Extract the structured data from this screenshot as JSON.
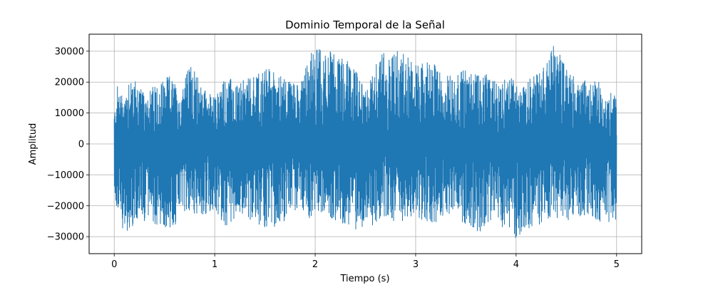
{
  "chart_data": {
    "type": "line",
    "title": "Dominio Temporal de la Señal",
    "xlabel": "Tiempo (s)",
    "ylabel": "Amplitud",
    "xlim": [
      -0.25,
      5.25
    ],
    "ylim": [
      -35500,
      35500
    ],
    "xticks": [
      0,
      1,
      2,
      3,
      4,
      5
    ],
    "xtick_labels": [
      "0",
      "1",
      "2",
      "3",
      "4",
      "5"
    ],
    "yticks": [
      -30000,
      -20000,
      -10000,
      0,
      10000,
      20000,
      30000
    ],
    "ytick_labels": [
      "−30000",
      "−20000",
      "−10000",
      "0",
      "10000",
      "20000",
      "30000"
    ],
    "grid": true,
    "line_color": "#1f77b4",
    "series": [
      {
        "name": "",
        "x_start": 0,
        "x_end": 5,
        "envelope": [
          {
            "x": 0.0,
            "max": 10000,
            "min": -17000
          },
          {
            "x": 0.03,
            "max": 19000,
            "min": -22000
          },
          {
            "x": 0.1,
            "max": 15000,
            "min": -29000
          },
          {
            "x": 0.16,
            "max": 24000,
            "min": -28000
          },
          {
            "x": 0.3,
            "max": 16000,
            "min": -25000
          },
          {
            "x": 0.45,
            "max": 21000,
            "min": -27000
          },
          {
            "x": 0.55,
            "max": 22000,
            "min": -28500
          },
          {
            "x": 0.65,
            "max": 18000,
            "min": -25000
          },
          {
            "x": 0.76,
            "max": 26000,
            "min": -22000
          },
          {
            "x": 0.9,
            "max": 18000,
            "min": -24000
          },
          {
            "x": 1.0,
            "max": 15000,
            "min": -21000
          },
          {
            "x": 1.1,
            "max": 22000,
            "min": -28000
          },
          {
            "x": 1.25,
            "max": 20000,
            "min": -22000
          },
          {
            "x": 1.4,
            "max": 23000,
            "min": -26000
          },
          {
            "x": 1.55,
            "max": 25000,
            "min": -28000
          },
          {
            "x": 1.7,
            "max": 21000,
            "min": -25000
          },
          {
            "x": 1.85,
            "max": 22000,
            "min": -20000
          },
          {
            "x": 1.95,
            "max": 30000,
            "min": -25000
          },
          {
            "x": 2.08,
            "max": 32000,
            "min": -22000
          },
          {
            "x": 2.2,
            "max": 29000,
            "min": -25000
          },
          {
            "x": 2.35,
            "max": 27000,
            "min": -27000
          },
          {
            "x": 2.52,
            "max": 18000,
            "min": -31000
          },
          {
            "x": 2.65,
            "max": 30000,
            "min": -24000
          },
          {
            "x": 2.85,
            "max": 31000,
            "min": -26000
          },
          {
            "x": 3.0,
            "max": 26000,
            "min": -23000
          },
          {
            "x": 3.15,
            "max": 27000,
            "min": -27000
          },
          {
            "x": 3.3,
            "max": 22000,
            "min": -23000
          },
          {
            "x": 3.5,
            "max": 25000,
            "min": -26000
          },
          {
            "x": 3.65,
            "max": 24000,
            "min": -29000
          },
          {
            "x": 3.8,
            "max": 20000,
            "min": -25000
          },
          {
            "x": 3.95,
            "max": 22000,
            "min": -32000
          },
          {
            "x": 4.05,
            "max": 18000,
            "min": -29000
          },
          {
            "x": 4.2,
            "max": 24000,
            "min": -27000
          },
          {
            "x": 4.28,
            "max": 25000,
            "min": -25000
          },
          {
            "x": 4.38,
            "max": 33000,
            "min": -24000
          },
          {
            "x": 4.55,
            "max": 23000,
            "min": -25000
          },
          {
            "x": 4.7,
            "max": 21000,
            "min": -23000
          },
          {
            "x": 4.85,
            "max": 20000,
            "min": -26000
          },
          {
            "x": 5.0,
            "max": 15000,
            "min": -25000
          }
        ]
      }
    ]
  }
}
